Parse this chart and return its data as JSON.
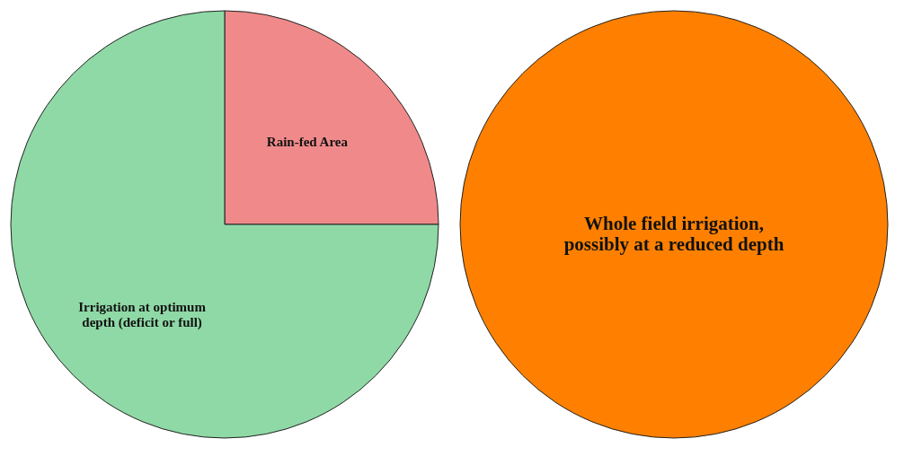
{
  "chart_data": [
    {
      "type": "pie",
      "categories": [
        "Rain-fed Area",
        "Irrigation at optimum\ndepth (deficit or full)"
      ],
      "values": [
        25,
        75
      ],
      "colors": [
        "#f08a8a",
        "#8fd9a6"
      ],
      "legend": false
    },
    {
      "type": "pie",
      "categories": [
        "Whole field irrigation,\npossibly at a reduced depth"
      ],
      "values": [
        100
      ],
      "colors": [
        "#ff8000"
      ],
      "legend": false
    }
  ]
}
